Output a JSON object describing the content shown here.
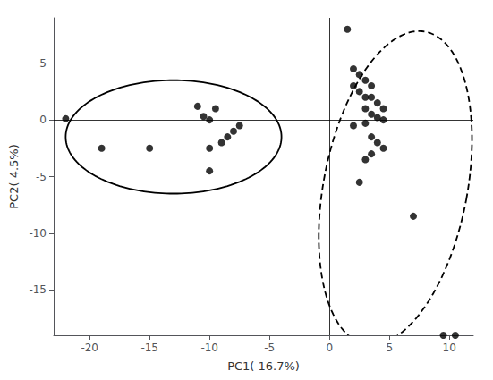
{
  "chart_data": {
    "type": "scatter",
    "xlabel": "PC1( 16.7%)",
    "ylabel": "PC2( 4.5%)",
    "xlim": [
      -23,
      12
    ],
    "ylim": [
      -19,
      9
    ],
    "xticks": [
      -20,
      -15,
      -10,
      -5,
      0,
      5,
      10
    ],
    "yticks": [
      -15,
      -10,
      -5,
      0,
      5
    ],
    "grid": false,
    "series": [
      {
        "color": "black",
        "marker": "circle",
        "values": [
          [
            -22,
            0.1
          ],
          [
            -19,
            -2.5
          ],
          [
            -15,
            -2.5
          ],
          [
            -11,
            1.2
          ],
          [
            -10.5,
            0.3
          ],
          [
            -10,
            0
          ],
          [
            -10,
            -2.5
          ],
          [
            -10,
            -4.5
          ],
          [
            -9.5,
            1.0
          ],
          [
            -9,
            -2.0
          ],
          [
            -8.5,
            -1.5
          ],
          [
            -8,
            -1.0
          ],
          [
            -7.5,
            -0.5
          ]
        ]
      },
      {
        "color": "black",
        "marker": "circle",
        "values": [
          [
            1.5,
            8.0
          ],
          [
            2.0,
            4.5
          ],
          [
            2.5,
            4.0
          ],
          [
            2.0,
            3.0
          ],
          [
            2.5,
            2.5
          ],
          [
            3.0,
            3.5
          ],
          [
            3.5,
            3.0
          ],
          [
            3.0,
            2.0
          ],
          [
            3.5,
            2.0
          ],
          [
            4.0,
            1.5
          ],
          [
            3.0,
            1.0
          ],
          [
            3.5,
            0.5
          ],
          [
            4.5,
            1.0
          ],
          [
            4.0,
            0.2
          ],
          [
            4.5,
            0.0
          ],
          [
            3.0,
            -0.3
          ],
          [
            2.0,
            -0.5
          ],
          [
            3.5,
            -1.5
          ],
          [
            4.0,
            -2.0
          ],
          [
            4.5,
            -2.5
          ],
          [
            3.5,
            -3.0
          ],
          [
            3.0,
            -3.5
          ],
          [
            2.5,
            -5.5
          ],
          [
            7.0,
            -8.5
          ],
          [
            10.5,
            -19.0
          ],
          [
            9.5,
            -19.0
          ]
        ]
      }
    ],
    "ellipses": [
      {
        "center": [
          -13,
          -1.5
        ],
        "width": 18,
        "height": 10,
        "angle": 0,
        "color": "black",
        "line_style": "solid"
      },
      {
        "center": [
          5.5,
          -6
        ],
        "width": 12,
        "height": 28,
        "angle": -10,
        "color": "black",
        "line_style": "dashed"
      }
    ],
    "hlines": [
      0
    ],
    "vlines": [
      0
    ]
  }
}
